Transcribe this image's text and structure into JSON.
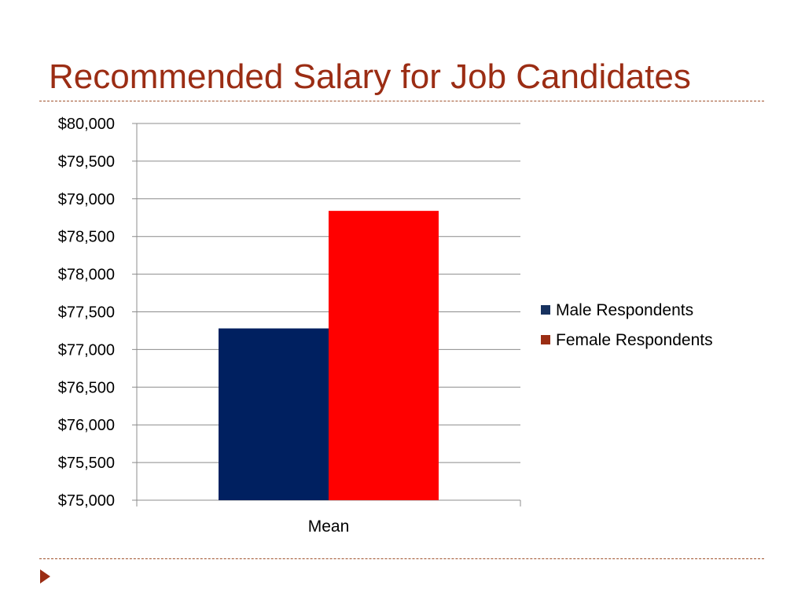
{
  "slide": {
    "title": "Recommended Salary for Job Candidates",
    "title_color": "#9b2d14",
    "rule_color": "#a0522d",
    "nav_icon": "play-arrow-icon"
  },
  "chart_data": {
    "type": "bar",
    "title": "",
    "xlabel": "",
    "ylabel": "",
    "categories": [
      "Mean"
    ],
    "series": [
      {
        "name": "Male Respondents",
        "values": [
          77280
        ],
        "color": "#002060",
        "legend_color": "#17325f"
      },
      {
        "name": "Female Respondents",
        "values": [
          78840
        ],
        "color": "#ff0000",
        "legend_color": "#9b2d14"
      }
    ],
    "ylim": [
      75000,
      80000
    ],
    "ytick_step": 500,
    "ytick_labels": [
      "$75,000",
      "$75,500",
      "$76,000",
      "$76,500",
      "$77,000",
      "$77,500",
      "$78,000",
      "$78,500",
      "$79,000",
      "$79,500",
      "$80,000"
    ],
    "grid": true,
    "grid_color": "#8c8c8c",
    "legend_position": "right"
  }
}
